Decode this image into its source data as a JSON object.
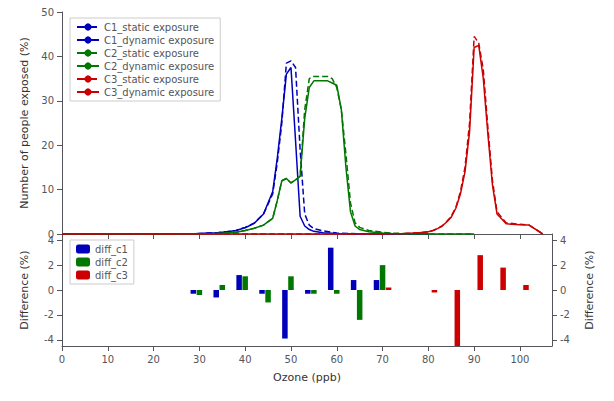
{
  "chart_data": [
    {
      "type": "line",
      "ylabel": "Number of people exposed (%)",
      "xlim": [
        0,
        107
      ],
      "xticks": [
        0,
        10,
        20,
        30,
        40,
        50,
        60,
        70,
        80,
        90,
        100
      ],
      "ylim": [
        0,
        50
      ],
      "yticks": [
        0,
        10,
        20,
        30,
        40,
        50
      ],
      "tick_labels": "y",
      "grid": false,
      "legend": "upper left",
      "series": [
        {
          "name": "C1_static exposure",
          "color": "#0000BB",
          "line_style": "dashed",
          "x": [
            0,
            5,
            10,
            15,
            20,
            25,
            28,
            30,
            32,
            34,
            36,
            38,
            40,
            42,
            44,
            46,
            47,
            48,
            49,
            50,
            51,
            52,
            53,
            54,
            55,
            57,
            60,
            65,
            70,
            75,
            80
          ],
          "values": [
            0,
            0,
            0,
            0,
            0,
            0,
            0,
            0.1,
            0.2,
            0.3,
            0.5,
            0.8,
            1.5,
            2.5,
            4.5,
            9.0,
            16.0,
            25.0,
            38.5,
            39.0,
            37.5,
            19.0,
            4.5,
            2.0,
            1.2,
            0.7,
            0.2,
            0.05,
            0,
            0,
            0
          ]
        },
        {
          "name": "C1_dynamic exposure",
          "color": "#0000BB",
          "line_style": "solid",
          "x": [
            0,
            5,
            10,
            15,
            20,
            25,
            28,
            30,
            32,
            34,
            36,
            38,
            40,
            42,
            44,
            46,
            47,
            48,
            49,
            50,
            51,
            52,
            53,
            54,
            55,
            57,
            60,
            65,
            70,
            75,
            80
          ],
          "values": [
            0,
            0,
            0,
            0,
            0,
            0,
            0,
            0.1,
            0.2,
            0.3,
            0.5,
            0.8,
            1.4,
            2.4,
            4.5,
            9.5,
            17.0,
            26.0,
            36.0,
            37.5,
            21.0,
            4.0,
            1.8,
            1.0,
            0.6,
            0.3,
            0.1,
            0,
            0,
            0,
            0
          ]
        },
        {
          "name": "C2_static exposure",
          "color": "#007700",
          "line_style": "dashed",
          "x": [
            0,
            10,
            20,
            25,
            30,
            32,
            34,
            36,
            38,
            40,
            42,
            44,
            46,
            47,
            48,
            49,
            50,
            51,
            52,
            53,
            54,
            55,
            56,
            57,
            58,
            59,
            60,
            61,
            62,
            63,
            64,
            65,
            67,
            70,
            72,
            75,
            80,
            90
          ],
          "values": [
            0,
            0,
            0,
            0,
            0,
            0,
            0.1,
            0.2,
            0.4,
            0.8,
            1.3,
            2.0,
            3.5,
            7.5,
            12.0,
            12.5,
            11.5,
            12.2,
            13.0,
            28.0,
            35.0,
            35.5,
            35.5,
            35.5,
            35.5,
            35.0,
            33.0,
            28.0,
            18.0,
            7.0,
            2.5,
            1.5,
            0.8,
            0.4,
            0.2,
            0.1,
            0,
            0
          ]
        },
        {
          "name": "C2_dynamic exposure",
          "color": "#007700",
          "line_style": "solid",
          "x": [
            0,
            10,
            20,
            25,
            30,
            32,
            34,
            36,
            38,
            40,
            42,
            44,
            46,
            47,
            48,
            49,
            50,
            51,
            52,
            53,
            54,
            55,
            56,
            57,
            58,
            59,
            60,
            61,
            62,
            63,
            64,
            65,
            67,
            70,
            72,
            75,
            80,
            90
          ],
          "values": [
            0,
            0,
            0,
            0,
            0,
            0,
            0.1,
            0.2,
            0.4,
            0.8,
            1.3,
            2.0,
            3.5,
            7.5,
            12.0,
            12.5,
            11.5,
            12.2,
            13.0,
            26.0,
            33.0,
            34.5,
            34.5,
            34.5,
            34.5,
            34.0,
            33.5,
            28.0,
            15.0,
            5.0,
            1.8,
            1.0,
            0.5,
            0.2,
            0.1,
            0,
            0,
            0
          ]
        },
        {
          "name": "C3_static exposure",
          "color": "#CC0000",
          "line_style": "dashed",
          "x": [
            0,
            20,
            40,
            60,
            70,
            75,
            78,
            80,
            81,
            82,
            83,
            84,
            85,
            86,
            87,
            88,
            89,
            90,
            91,
            92,
            93,
            94,
            95,
            97,
            100,
            102,
            105
          ],
          "values": [
            0,
            0,
            0,
            0,
            0,
            0.1,
            0.3,
            0.5,
            0.8,
            1.2,
            1.8,
            2.8,
            4.0,
            6.0,
            9.5,
            15.0,
            25.0,
            44.5,
            43.0,
            37.0,
            24.0,
            12.0,
            5.0,
            2.5,
            2.2,
            2.0,
            0
          ]
        },
        {
          "name": "C3_dynamic exposure",
          "color": "#CC0000",
          "line_style": "solid",
          "x": [
            0,
            20,
            40,
            60,
            70,
            75,
            78,
            80,
            81,
            82,
            83,
            84,
            85,
            86,
            87,
            88,
            89,
            90,
            91,
            92,
            93,
            94,
            95,
            97,
            100,
            102,
            105
          ],
          "values": [
            0,
            0,
            0,
            0,
            0,
            0.1,
            0.3,
            0.5,
            0.8,
            1.2,
            1.8,
            2.7,
            3.8,
            5.8,
            9.0,
            14.0,
            23.0,
            42.0,
            42.5,
            35.0,
            22.5,
            11.0,
            4.5,
            2.3,
            2.1,
            2.0,
            0
          ]
        }
      ]
    },
    {
      "type": "bar",
      "xlabel": "Ozone (ppb)",
      "ylabel": "Difference (%)",
      "y2label": "Difference (%)",
      "xlim": [
        0,
        107
      ],
      "xticks": [
        0,
        10,
        20,
        30,
        40,
        50,
        60,
        70,
        80,
        90,
        100
      ],
      "ylim": [
        -4.5,
        4.5
      ],
      "yticks": [
        -4,
        -2,
        0,
        2,
        4
      ],
      "y2lim": [
        -4.5,
        4.5
      ],
      "y2ticks": [
        -4,
        -2,
        0,
        2,
        4
      ],
      "grid": false,
      "legend": "upper left",
      "series": [
        {
          "name": "diff_c1",
          "color": "#0000BB",
          "x": [
            30,
            35,
            40,
            45,
            50,
            55,
            60,
            65,
            70
          ],
          "values": [
            -0.3,
            -0.6,
            1.2,
            -0.3,
            -3.9,
            -0.3,
            3.4,
            0.8,
            0.8
          ]
        },
        {
          "name": "diff_c2",
          "color": "#007700",
          "x": [
            30,
            35,
            40,
            45,
            50,
            55,
            60,
            65,
            70
          ],
          "values": [
            -0.4,
            0.4,
            1.1,
            -1.0,
            1.1,
            -0.3,
            -0.3,
            -2.4,
            2.0
          ]
        },
        {
          "name": "diff_c3",
          "color": "#CC0000",
          "x": [
            70,
            80,
            85,
            90,
            95,
            100
          ],
          "values": [
            0.2,
            -0.2,
            -4.5,
            2.8,
            1.8,
            0.4
          ]
        }
      ]
    }
  ]
}
